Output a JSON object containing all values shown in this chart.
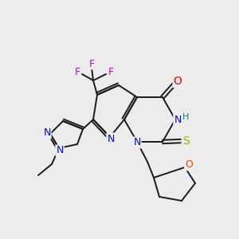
{
  "background_color": "#ececec",
  "bond_color": "#1a1a1a",
  "atom_colors": {
    "N": "#0000ee",
    "O_carbonyl": "#ee0000",
    "O_ring": "#ee4400",
    "S": "#aaaa00",
    "F": "#cc00cc",
    "H": "#008888",
    "C": "#1a1a1a"
  },
  "figsize": [
    3.0,
    3.0
  ],
  "dpi": 100
}
